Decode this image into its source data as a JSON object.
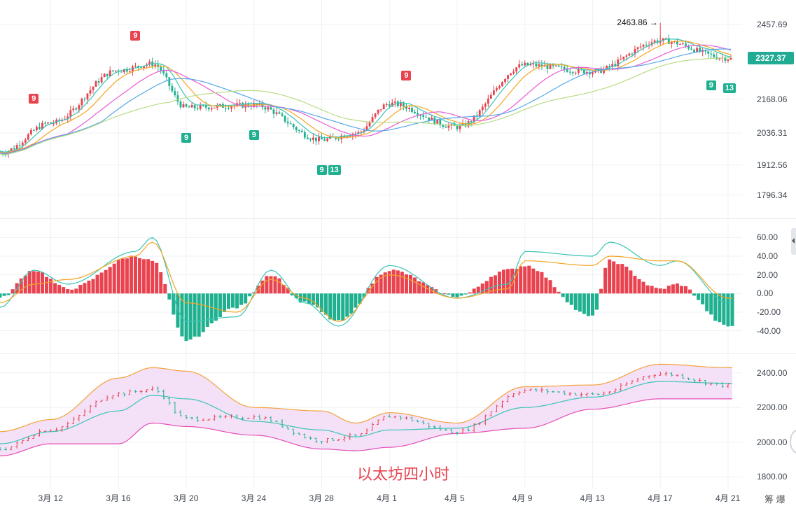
{
  "watermark": "以太坊四小时",
  "brand": "筹 爆",
  "price_tag": "2327.37",
  "high_callout": "2463.86 →",
  "icons": {
    "collapse": "chevron-left-icon",
    "corner": "circle-icon"
  },
  "colors": {
    "up": "#e8434f",
    "down": "#1fb090",
    "ma1": "#3bc4b4",
    "ma2": "#f4a623",
    "ma3": "#e95ad6",
    "ma4": "#56a9e8",
    "ma5": "#b8dc86",
    "band": "#f2dcf7",
    "band_upper": "#f4a23a",
    "band_lower": "#e54fb5",
    "band_mid": "#3bc4b4",
    "grid": "#eef1f4",
    "price_tag": "#22ab94"
  },
  "chart_data": [
    {
      "id": "price",
      "type": "candlestick",
      "title": "",
      "x": [
        "3/9",
        "3/12",
        "3/16",
        "3/18",
        "3/20",
        "3/24",
        "3/28",
        "3/30",
        "4/1",
        "4/5",
        "4/9",
        "4/13",
        "4/17",
        "4/21"
      ],
      "close": [
        1960,
        2075,
        2280,
        2305,
        2135,
        2145,
        2010,
        2035,
        2150,
        2060,
        2300,
        2275,
        2395,
        2327.37
      ],
      "y_ticks": [
        2457.69,
        2168.06,
        2036.31,
        1912.56,
        1796.34
      ],
      "ylim": [
        1738,
        2520
      ],
      "last_price": 2327.37,
      "high": {
        "value": 2463.86,
        "x": "4/17"
      },
      "ma_levels_vs_price": [
        0.99,
        0.98,
        0.97,
        0.965,
        0.955
      ],
      "markers": [
        {
          "x": "3/11",
          "label": "9",
          "color": "red",
          "position": "above"
        },
        {
          "x": "3/17",
          "label": "9",
          "color": "red",
          "position": "above"
        },
        {
          "x": "3/20",
          "label": "9",
          "color": "teal",
          "position": "below"
        },
        {
          "x": "3/24",
          "label": "9",
          "color": "teal",
          "position": "below"
        },
        {
          "x": "3/28",
          "label": "9",
          "color": "teal",
          "position": "below"
        },
        {
          "x": "3/28",
          "label": "13",
          "color": "teal",
          "position": "below"
        },
        {
          "x": "4/2",
          "label": "9",
          "color": "red",
          "position": "above"
        },
        {
          "x": "4/20",
          "label": "9",
          "color": "teal",
          "position": "below"
        },
        {
          "x": "4/21",
          "label": "13",
          "color": "teal",
          "position": "below"
        }
      ]
    },
    {
      "id": "macd",
      "type": "bar",
      "title": "",
      "x": [
        "3/9",
        "3/11",
        "3/13",
        "3/17",
        "3/18",
        "3/20",
        "3/23",
        "3/25",
        "3/27",
        "3/29",
        "4/1",
        "4/5",
        "4/8",
        "4/9",
        "4/13",
        "4/14",
        "4/17",
        "4/18",
        "4/21"
      ],
      "hist": [
        -5,
        25,
        5,
        40,
        35,
        -50,
        -15,
        20,
        -10,
        -30,
        25,
        -3,
        25,
        30,
        -25,
        35,
        5,
        10,
        -35
      ],
      "dif": [
        -15,
        25,
        10,
        45,
        60,
        -30,
        -25,
        25,
        -10,
        -35,
        30,
        -5,
        10,
        45,
        40,
        55,
        30,
        35,
        -10
      ],
      "dea": [
        -10,
        10,
        15,
        40,
        55,
        -10,
        -20,
        15,
        -5,
        -30,
        20,
        -5,
        5,
        35,
        30,
        40,
        35,
        35,
        -5
      ],
      "y_ticks": [
        60.0,
        40.0,
        20.0,
        0.0,
        -20.0,
        -40.0
      ],
      "y_tick_labels": [
        "60.00",
        "40.00",
        "20.00",
        "0.00",
        "-20.00",
        "-40.00"
      ],
      "ylim": [
        -56,
        70
      ]
    },
    {
      "id": "bollinger",
      "type": "line",
      "title": "",
      "x": [
        "3/9",
        "3/12",
        "3/16",
        "3/18",
        "3/20",
        "3/24",
        "3/28",
        "3/30",
        "4/1",
        "4/5",
        "4/9",
        "4/13",
        "4/17",
        "4/21"
      ],
      "close": [
        1960,
        2075,
        2280,
        2305,
        2135,
        2145,
        2010,
        2035,
        2150,
        2060,
        2300,
        2275,
        2395,
        2327.37
      ],
      "mid": [
        1990,
        2060,
        2180,
        2270,
        2250,
        2120,
        2070,
        2030,
        2070,
        2080,
        2200,
        2260,
        2350,
        2340
      ],
      "upper": [
        2060,
        2130,
        2370,
        2430,
        2410,
        2200,
        2180,
        2110,
        2170,
        2110,
        2320,
        2330,
        2450,
        2430
      ],
      "lower": [
        1920,
        1990,
        1990,
        2110,
        2090,
        2040,
        1960,
        1950,
        1970,
        2050,
        2080,
        2190,
        2250,
        2250
      ],
      "y_ticks": [
        2400.0,
        2200.0,
        2000.0,
        1800.0
      ],
      "y_tick_labels": [
        "2400.00",
        "2200.00",
        "2000.00",
        "1800.00"
      ],
      "ylim": [
        1760,
        2480
      ]
    }
  ],
  "x_axis": {
    "labels": [
      "3月 12",
      "3月 16",
      "3月 20",
      "3月 24",
      "3月 28",
      "4月 1",
      "4月 5",
      "4月 9",
      "4月 13",
      "4月 17",
      "4月 21"
    ],
    "dates": [
      "3/12",
      "3/16",
      "3/20",
      "3/24",
      "3/28",
      "4/1",
      "4/5",
      "4/9",
      "4/13",
      "4/17",
      "4/21"
    ],
    "range": [
      "3/9",
      "4/21"
    ]
  }
}
